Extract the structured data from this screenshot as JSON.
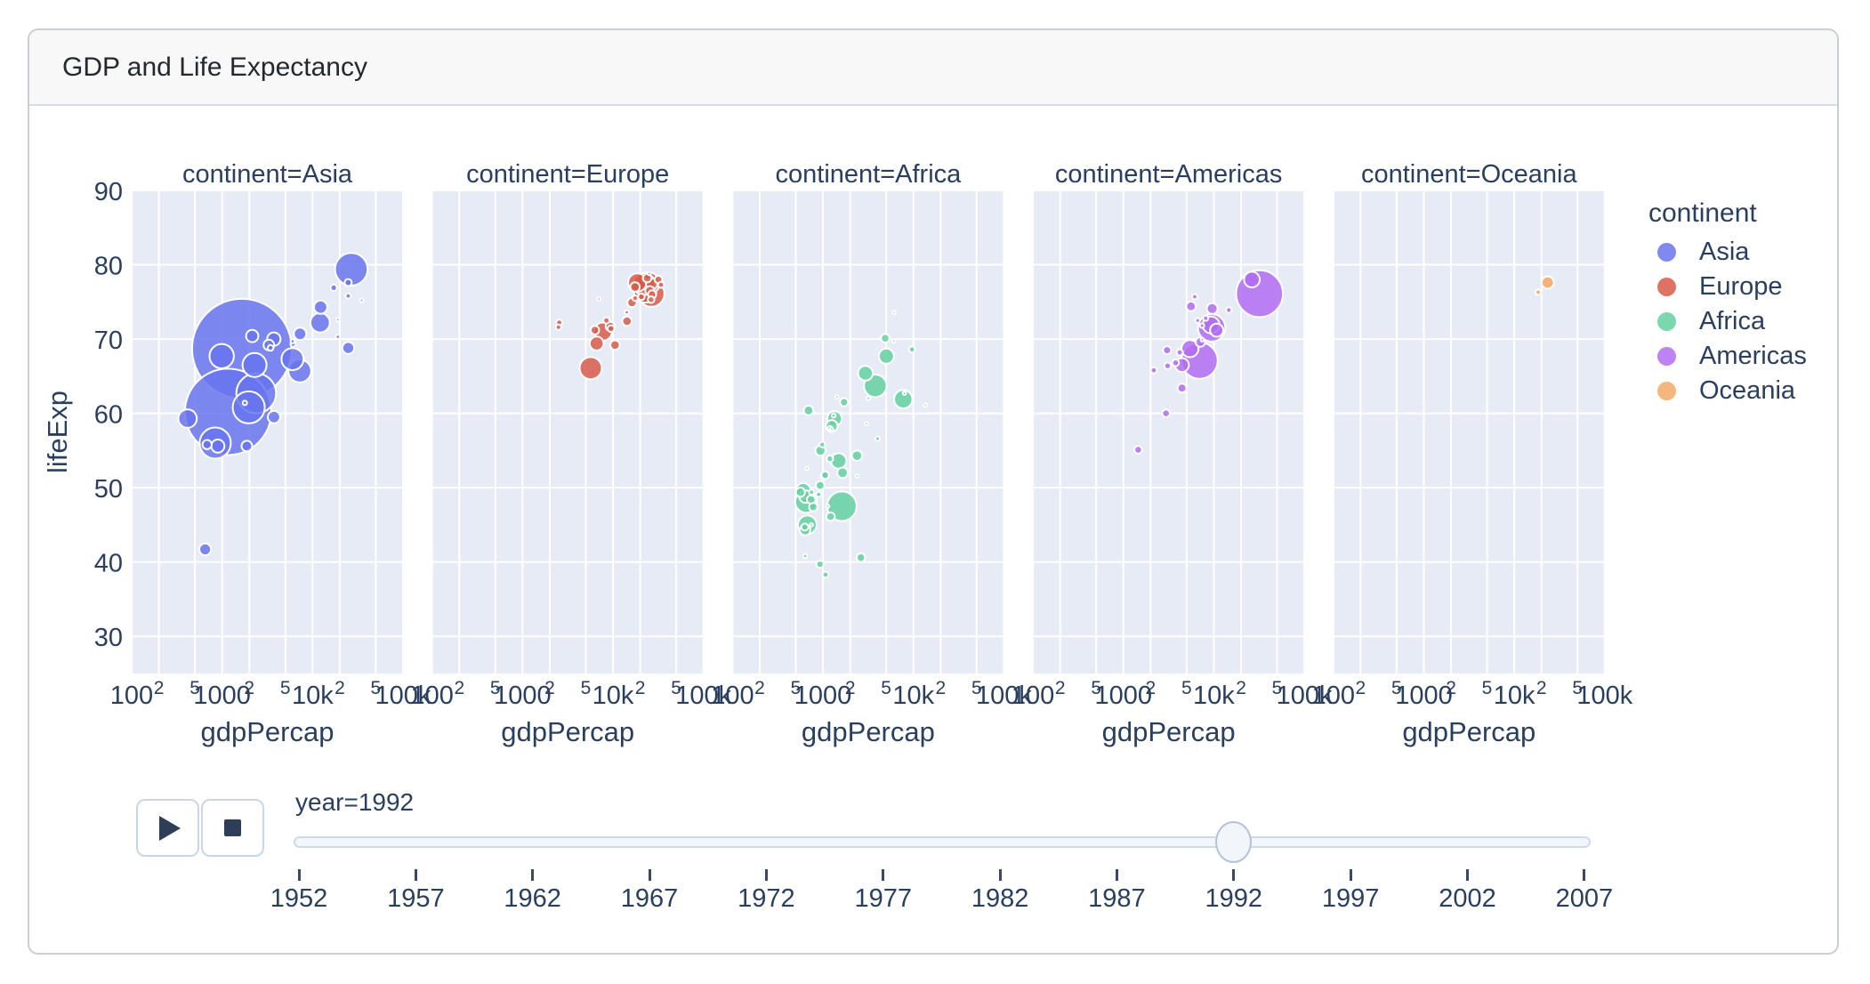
{
  "window": {
    "title": "GDP and Life Expectancy"
  },
  "colors": {
    "asia": "#6974ED",
    "europe": "#D85A4A",
    "africa": "#64D0A0",
    "americas": "#B16CF1",
    "oceania": "#F3A967",
    "plot_bg": "#E6EBF5",
    "grid": "#FFFFFF",
    "axis_text": "#2A3F5F",
    "card_border": "#C9CED4",
    "header_bg": "#F8F8F9",
    "button_border": "#C9D6E8",
    "glyph": "#2E3D58",
    "slider_track": "#F2F6FA",
    "slider_border": "#CFDAE8",
    "slider_handle_border": "#B3C2D6",
    "year_tick": "#3B4A63"
  },
  "icons": {
    "play": "play-icon",
    "stop": "stop-icon"
  },
  "chart_data": {
    "type": "scatter",
    "title": "GDP and Life Expectancy",
    "x_axis": {
      "label": "gdpPercap",
      "scale": "log",
      "range": [
        100,
        100000
      ],
      "ticks": [
        {
          "v": 100,
          "label": "100",
          "minor": false
        },
        {
          "v": 200,
          "label": "2",
          "minor": true
        },
        {
          "v": 500,
          "label": "5",
          "minor": true
        },
        {
          "v": 1000,
          "label": "1000",
          "minor": false
        },
        {
          "v": 2000,
          "label": "2",
          "minor": true
        },
        {
          "v": 5000,
          "label": "5",
          "minor": true
        },
        {
          "v": 10000,
          "label": "10k",
          "minor": false
        },
        {
          "v": 20000,
          "label": "2",
          "minor": true
        },
        {
          "v": 50000,
          "label": "5",
          "minor": true
        },
        {
          "v": 100000,
          "label": "100k",
          "minor": false
        }
      ]
    },
    "y_axis": {
      "label": "lifeExp",
      "range": [
        25,
        90
      ],
      "ticks": [
        30,
        40,
        50,
        60,
        70,
        80,
        90
      ]
    },
    "legend": {
      "title": "continent",
      "position": "right"
    },
    "facets": [
      {
        "name": "Asia",
        "label": "continent=Asia"
      },
      {
        "name": "Europe",
        "label": "continent=Europe"
      },
      {
        "name": "Africa",
        "label": "continent=Africa"
      },
      {
        "name": "Americas",
        "label": "continent=Americas"
      },
      {
        "name": "Oceania",
        "label": "continent=Oceania"
      }
    ],
    "marker": {
      "opacity": 0.85,
      "outline": "#FFFFFF",
      "max_radius_px": 56,
      "pop_max_millions": 1164
    },
    "size_by": "pop_millions",
    "point_format": [
      "gdpPercap",
      "lifeExp",
      "pop_millions"
    ],
    "series": [
      {
        "name": "Asia",
        "color": "#6974ED",
        "points": [
          [
            649,
            41.7,
            16.3
          ],
          [
            19036,
            72.6,
            0.5
          ],
          [
            838,
            56.0,
            113.7
          ],
          [
            682,
            55.8,
            10.2
          ],
          [
            1656,
            68.7,
            1164.0
          ],
          [
            24758,
            77.6,
            5.8
          ],
          [
            1164,
            60.2,
            872.0
          ],
          [
            2383,
            62.7,
            184.8
          ],
          [
            7235,
            65.7,
            60.4
          ],
          [
            3746,
            59.5,
            17.9
          ],
          [
            17122,
            76.9,
            4.9
          ],
          [
            26825,
            79.4,
            124.3
          ],
          [
            3431,
            68.8,
            3.9
          ],
          [
            3727,
            70.0,
            20.7
          ],
          [
            12104,
            72.2,
            43.8
          ],
          [
            34933,
            75.2,
            1.4
          ],
          [
            6090,
            69.3,
            3.2
          ],
          [
            7277,
            70.7,
            18.3
          ],
          [
            1785,
            61.4,
            2.3
          ],
          [
            415,
            59.3,
            40.5
          ],
          [
            897,
            55.6,
            20.3
          ],
          [
            18995,
            70.3,
            1.9
          ],
          [
            1972,
            60.8,
            120.1
          ],
          [
            2280,
            66.5,
            67.2
          ],
          [
            24841,
            68.8,
            16.9
          ],
          [
            24769,
            75.8,
            3.2
          ],
          [
            2154,
            70.4,
            17.6
          ],
          [
            3285,
            69.2,
            13.2
          ],
          [
            12281,
            74.3,
            20.7
          ],
          [
            6006,
            67.3,
            56.7
          ],
          [
            989,
            67.7,
            69.5
          ],
          [
            6017,
            69.7,
            2.0
          ],
          [
            1879,
            55.6,
            13.3
          ]
        ]
      },
      {
        "name": "Europe",
        "color": "#D85A4A",
        "points": [
          [
            2497,
            71.6,
            3.3
          ],
          [
            27042,
            76.0,
            7.9
          ],
          [
            25576,
            76.5,
            10.0
          ],
          [
            2547,
            72.2,
            4.3
          ],
          [
            6303,
            71.2,
            8.7
          ],
          [
            8448,
            72.5,
            4.5
          ],
          [
            14297,
            72.4,
            10.3
          ],
          [
            26407,
            75.3,
            5.2
          ],
          [
            20647,
            75.7,
            5.0
          ],
          [
            24704,
            77.5,
            57.4
          ],
          [
            26505,
            76.1,
            80.6
          ],
          [
            17541,
            77.0,
            10.3
          ],
          [
            10536,
            69.2,
            10.3
          ],
          [
            25144,
            78.8,
            0.3
          ],
          [
            17559,
            75.5,
            3.6
          ],
          [
            22014,
            77.4,
            56.8
          ],
          [
            7003,
            75.4,
            0.6
          ],
          [
            26791,
            77.4,
            15.2
          ],
          [
            33965,
            77.3,
            4.3
          ],
          [
            7739,
            71.0,
            38.4
          ],
          [
            16207,
            74.9,
            9.9
          ],
          [
            6598,
            69.4,
            22.8
          ],
          [
            9325,
            71.7,
            9.8
          ],
          [
            9498,
            71.4,
            5.3
          ],
          [
            14214,
            73.6,
            2.0
          ],
          [
            18603,
            77.6,
            39.5
          ],
          [
            23880,
            78.2,
            8.7
          ],
          [
            31871,
            78.0,
            6.9
          ],
          [
            5678,
            66.1,
            58.2
          ],
          [
            22705,
            76.4,
            57.9
          ]
        ]
      },
      {
        "name": "Africa",
        "color": "#64D0A0",
        "points": [
          [
            5023,
            67.7,
            26.9
          ],
          [
            2628,
            40.6,
            8.7
          ],
          [
            1191,
            53.9,
            5.0
          ],
          [
            7954,
            62.7,
            1.3
          ],
          [
            931,
            50.3,
            8.9
          ],
          [
            631,
            44.7,
            5.8
          ],
          [
            2377,
            54.3,
            12.5
          ],
          [
            747,
            49.4,
            3.2
          ],
          [
            1058,
            51.7,
            6.4
          ],
          [
            1246,
            57.9,
            0.5
          ],
          [
            672,
            45.0,
            41.3
          ],
          [
            4016,
            56.6,
            2.4
          ],
          [
            1648,
            52.0,
            12.8
          ],
          [
            2377,
            51.6,
            0.4
          ],
          [
            3794,
            63.7,
            59.4
          ],
          [
            1132,
            47.5,
            0.4
          ],
          [
            897,
            49.1,
            3.2
          ],
          [
            649,
            48.1,
            55.0
          ],
          [
            13522,
            61.1,
            1.0
          ],
          [
            665,
            52.6,
            1.0
          ],
          [
            1250,
            58.3,
            16.3
          ],
          [
            1040,
            51.6,
            6.9
          ],
          [
            745,
            45.0,
            1.1
          ],
          [
            1342,
            59.3,
            25.0
          ],
          [
            1314,
            59.7,
            1.8
          ],
          [
            636,
            40.8,
            1.9
          ],
          [
            9641,
            68.6,
            4.4
          ],
          [
            937,
            55.0,
            12.2
          ],
          [
            563,
            49.4,
            10.0
          ],
          [
            740,
            48.4,
            8.4
          ],
          [
            1191,
            58.0,
            2.1
          ],
          [
            6058,
            69.7,
            1.1
          ],
          [
            2948,
            65.4,
            25.8
          ],
          [
            634,
            44.3,
            13.2
          ],
          [
            3173,
            62.0,
            1.5
          ],
          [
            781,
            47.4,
            8.3
          ],
          [
            1619,
            47.5,
            102.0
          ],
          [
            6101,
            73.6,
            0.6
          ],
          [
            1429,
            62.2,
            0.1
          ],
          [
            1712,
            61.5,
            8.0
          ],
          [
            1069,
            38.3,
            4.3
          ],
          [
            926,
            39.7,
            6.1
          ],
          [
            7711,
            61.9,
            39.3
          ],
          [
            1492,
            53.6,
            28.2
          ],
          [
            3044,
            58.6,
            0.9
          ],
          [
            605,
            49.6,
            26.6
          ],
          [
            982,
            55.8,
            3.8
          ],
          [
            4876,
            70.1,
            8.6
          ],
          [
            644,
            48.8,
            18.7
          ],
          [
            1210,
            46.1,
            8.4
          ],
          [
            693,
            60.4,
            10.7
          ]
        ]
      },
      {
        "name": "Americas",
        "color": "#B16CF1",
        "points": [
          [
            9308,
            71.9,
            33.5
          ],
          [
            2962,
            60.0,
            6.9
          ],
          [
            6950,
            67.1,
            155.0
          ],
          [
            26343,
            78.0,
            28.5
          ],
          [
            9596,
            74.1,
            13.6
          ],
          [
            5444,
            68.7,
            34.2
          ],
          [
            6160,
            75.7,
            3.2
          ],
          [
            5592,
            74.4,
            10.7
          ],
          [
            3044,
            68.5,
            7.4
          ],
          [
            7103,
            69.6,
            10.7
          ],
          [
            3776,
            66.8,
            5.3
          ],
          [
            4439,
            63.4,
            9.3
          ],
          [
            1456,
            55.1,
            6.9
          ],
          [
            3081,
            66.4,
            5.1
          ],
          [
            7404,
            71.8,
            2.4
          ],
          [
            9472,
            71.5,
            88.1
          ],
          [
            2170,
            65.8,
            4.2
          ],
          [
            6618,
            72.5,
            2.5
          ],
          [
            4196,
            68.2,
            4.5
          ],
          [
            4446,
            66.5,
            22.4
          ],
          [
            14641,
            73.9,
            3.6
          ],
          [
            7449,
            69.9,
            1.2
          ],
          [
            32003,
            76.1,
            256.9
          ],
          [
            8137,
            72.8,
            3.1
          ],
          [
            10733,
            71.2,
            20.3
          ]
        ]
      },
      {
        "name": "Oceania",
        "color": "#F3A967",
        "points": [
          [
            23425,
            77.6,
            17.5
          ],
          [
            18363,
            76.3,
            3.4
          ]
        ]
      }
    ]
  },
  "animation": {
    "year_label": "year=1992",
    "current_year": 1992,
    "years": [
      1952,
      1957,
      1962,
      1967,
      1972,
      1977,
      1982,
      1987,
      1992,
      1997,
      2002,
      2007
    ]
  }
}
